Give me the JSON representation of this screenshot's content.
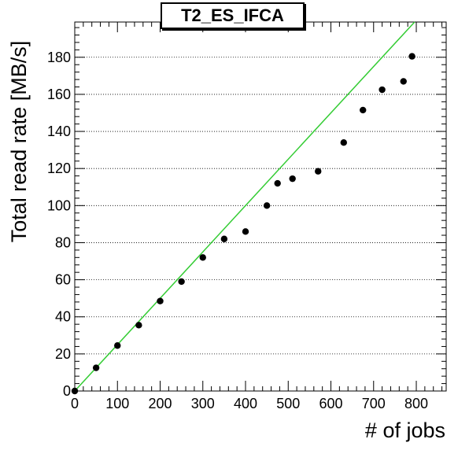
{
  "chart_data": {
    "type": "scatter",
    "title": "T2_ES_IFCA",
    "xlabel": "# of jobs",
    "ylabel": "Total read rate [MB/s]",
    "xlim": [
      0,
      870
    ],
    "ylim": [
      0,
      199
    ],
    "xticks": [
      0,
      100,
      200,
      300,
      400,
      500,
      600,
      700,
      800
    ],
    "yticks": [
      0,
      20,
      40,
      60,
      80,
      100,
      120,
      140,
      160,
      180
    ],
    "grid": "horizontal dotted",
    "series": [
      {
        "marker": "circle",
        "color": "#000000",
        "x": [
          0,
          50,
          100,
          150,
          200,
          250,
          300,
          350,
          400,
          450,
          475,
          510,
          570,
          630,
          675,
          720,
          770,
          790
        ],
        "y": [
          0,
          12.5,
          24.5,
          35.5,
          48.5,
          59,
          72,
          82,
          86,
          100,
          112,
          114.5,
          118.5,
          134,
          151.5,
          162.5,
          167,
          180.5
        ]
      }
    ],
    "reference_line": {
      "color": "#33cc33",
      "x": [
        0,
        800
      ],
      "y": [
        0,
        200
      ]
    }
  }
}
